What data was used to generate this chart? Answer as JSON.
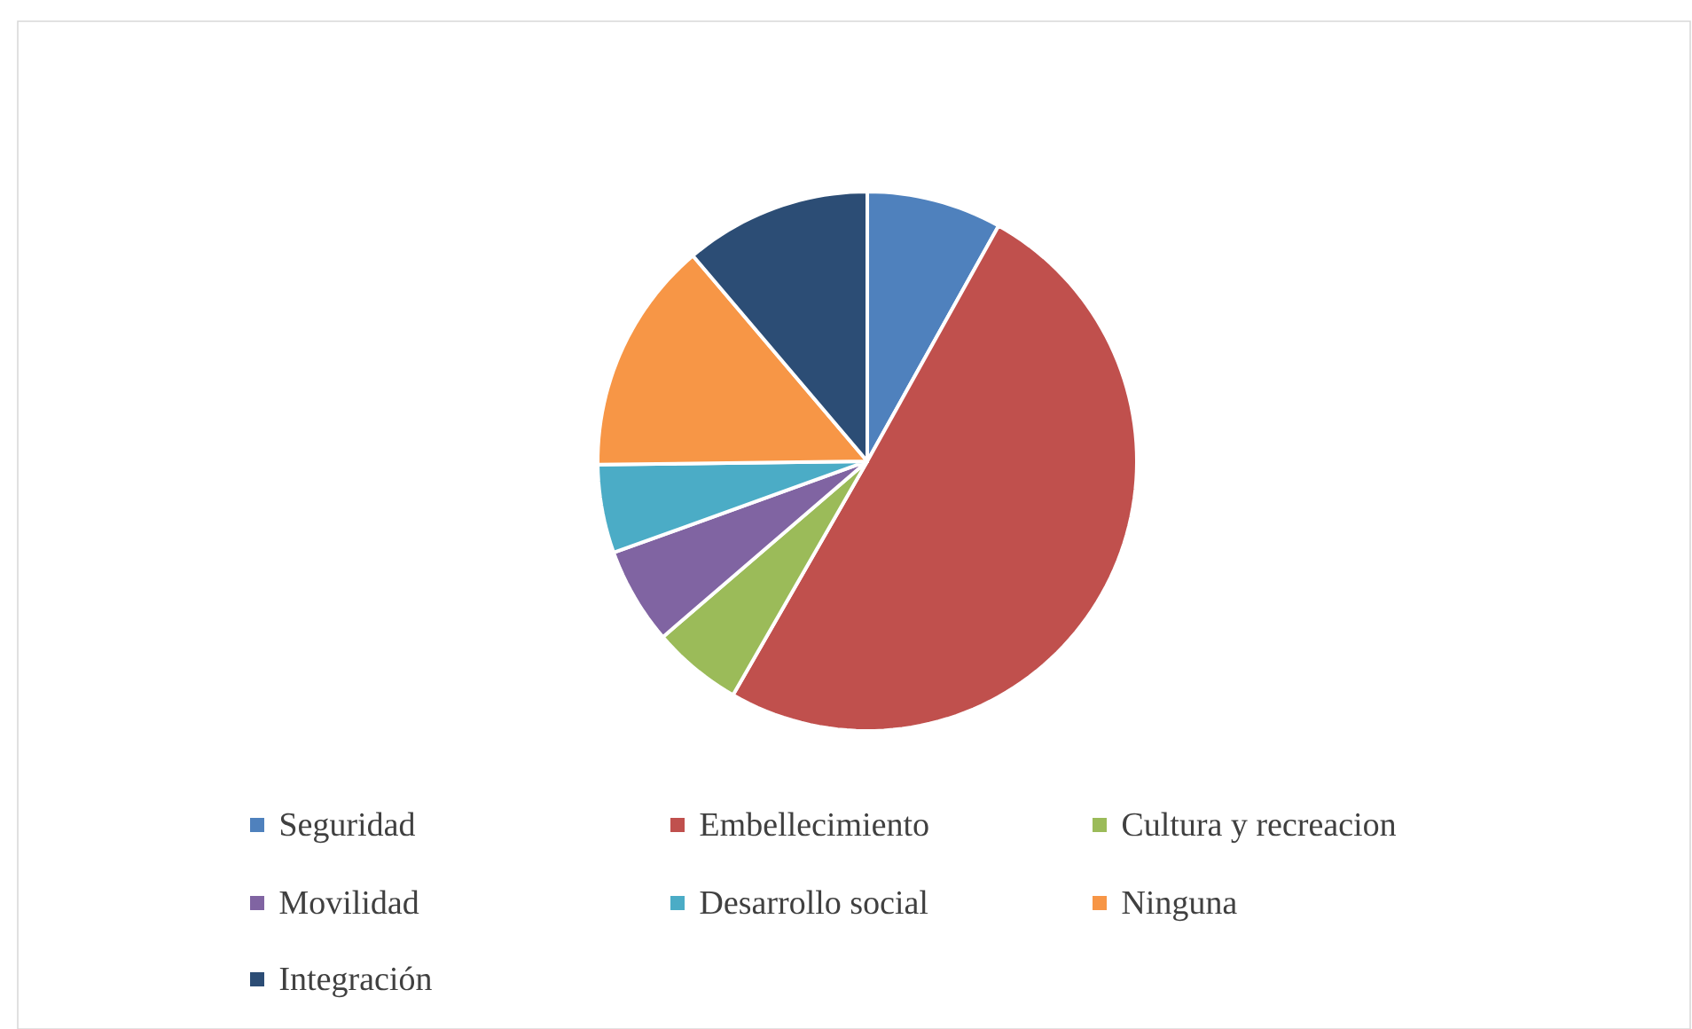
{
  "chart_data": {
    "type": "pie",
    "legend": "bottom",
    "categories": [
      "Seguridad",
      "Embellecimiento",
      "Cultura y recreacion",
      "Movilidad",
      "Desarrollo social",
      "Ninguna",
      "Integración"
    ],
    "values": [
      8.1,
      50.2,
      5.4,
      5.8,
      5.3,
      14.0,
      11.2
    ],
    "colors": [
      "#4f81bd",
      "#c0504d",
      "#9bbb59",
      "#8064a2",
      "#4bacc6",
      "#f79646",
      "#2c4d75"
    ]
  }
}
